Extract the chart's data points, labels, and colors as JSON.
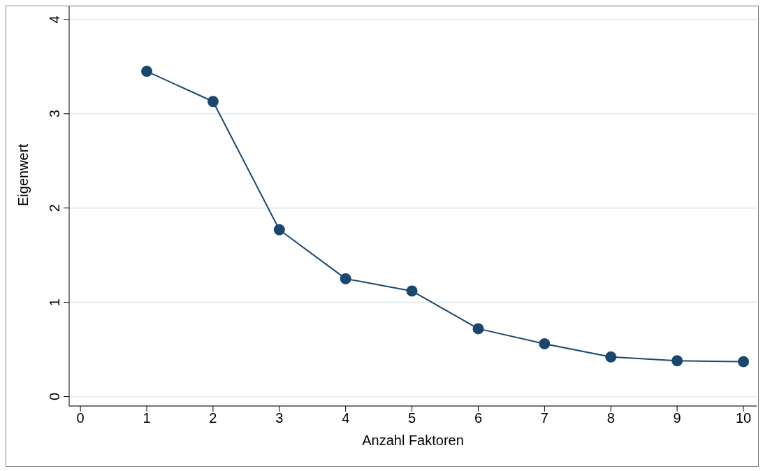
{
  "chart_data": {
    "type": "line",
    "xlabel": "Anzahl Faktoren",
    "ylabel": "Eigenwert",
    "x": [
      1,
      2,
      3,
      4,
      5,
      6,
      7,
      8,
      9,
      10
    ],
    "series": [
      {
        "color": "#1a476f",
        "values": [
          3.45,
          3.13,
          1.77,
          1.25,
          1.12,
          0.72,
          0.56,
          0.42,
          0.38,
          0.37
        ]
      }
    ],
    "xlim": [
      -0.17,
      10.2
    ],
    "xticks": [
      0,
      1,
      2,
      3,
      4,
      5,
      6,
      7,
      8,
      9,
      10
    ],
    "ylim": [
      -0.1,
      4.14
    ],
    "yticks": [
      0,
      1,
      2,
      3,
      4
    ],
    "grid": "y",
    "marker": "circle",
    "line_style": "solid"
  }
}
